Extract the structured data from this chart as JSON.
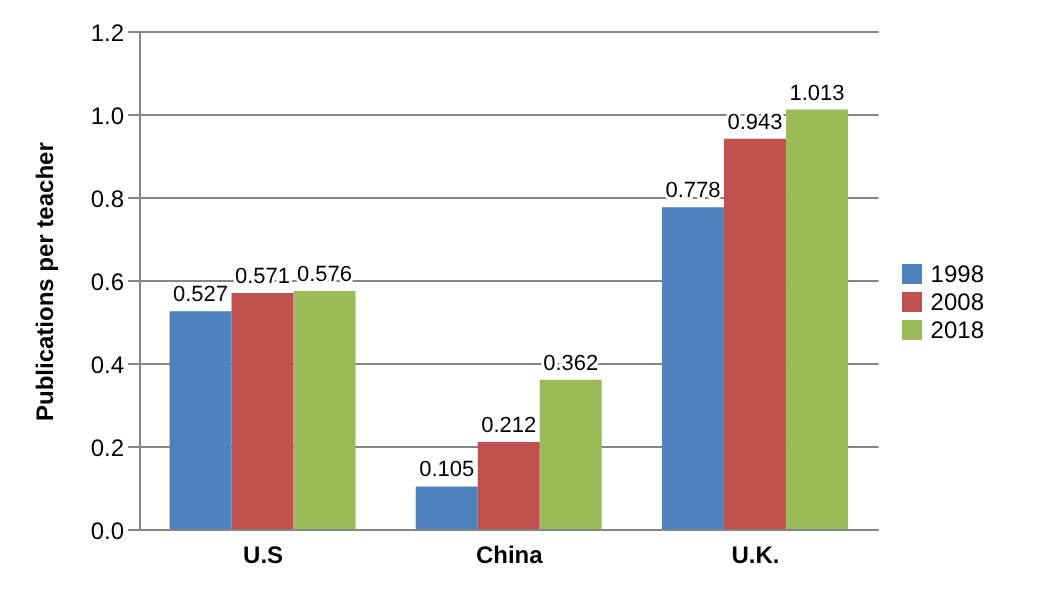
{
  "chart_data": {
    "type": "bar",
    "ylabel": "Publications per teacher",
    "categories": [
      "U.S",
      "China",
      "U.K."
    ],
    "series": [
      {
        "name": "1998",
        "color": "#4f81bd",
        "values": [
          0.527,
          0.105,
          0.778
        ]
      },
      {
        "name": "2008",
        "color": "#c0504d",
        "values": [
          0.571,
          0.212,
          0.943
        ]
      },
      {
        "name": "2018",
        "color": "#9bbb59",
        "values": [
          0.576,
          0.362,
          1.013
        ]
      }
    ],
    "ylim": [
      0,
      1.2
    ],
    "yticks": [
      {
        "value": 0,
        "label": "0.0"
      },
      {
        "value": 0.2,
        "label": "0.2"
      },
      {
        "value": 0.4,
        "label": "0.4"
      },
      {
        "value": 0.6,
        "label": "0.6"
      },
      {
        "value": 0.8,
        "label": "0.8"
      },
      {
        "value": 1,
        "label": "1.0"
      },
      {
        "value": 1.2,
        "label": "1.2"
      }
    ],
    "grid": "y",
    "legend": "right",
    "data_labels": true
  }
}
